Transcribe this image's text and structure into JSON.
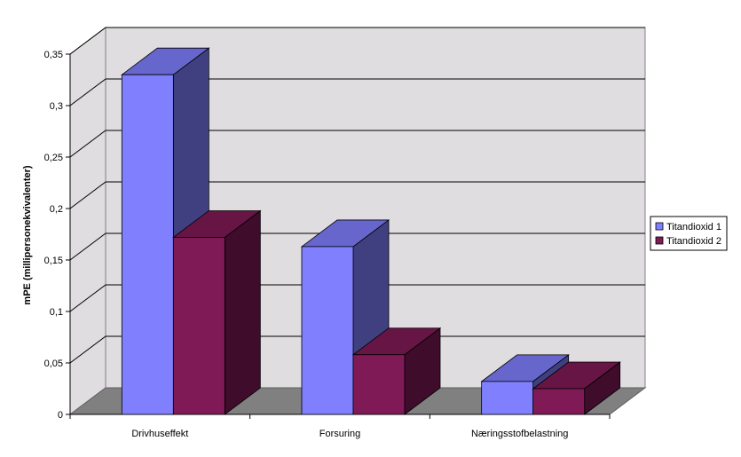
{
  "chart_data": {
    "type": "bar",
    "title": "",
    "xlabel": "",
    "ylabel": "mPE (millipersonekvivalenter)",
    "categories": [
      "Drivhuseffekt",
      "Forsuring",
      "Næringsstofbelastning"
    ],
    "series": [
      {
        "name": "Titandioxid 1",
        "values": [
          0.33,
          0.163,
          0.032
        ],
        "color": "#8080ff",
        "top_color": "#6666cc",
        "side_color": "#404080"
      },
      {
        "name": "Titandioxid 2",
        "values": [
          0.172,
          0.058,
          0.025
        ],
        "color": "#7f1a57",
        "top_color": "#661545",
        "side_color": "#400c2b"
      }
    ],
    "ylim": [
      0,
      0.35
    ],
    "yticks": [
      "0",
      "0,05",
      "0,1",
      "0,15",
      "0,2",
      "0,25",
      "0,3",
      "0,35"
    ],
    "grid": true,
    "legend_position": "right",
    "wall_color": "#e0dde0",
    "floor_color": "#808080"
  }
}
